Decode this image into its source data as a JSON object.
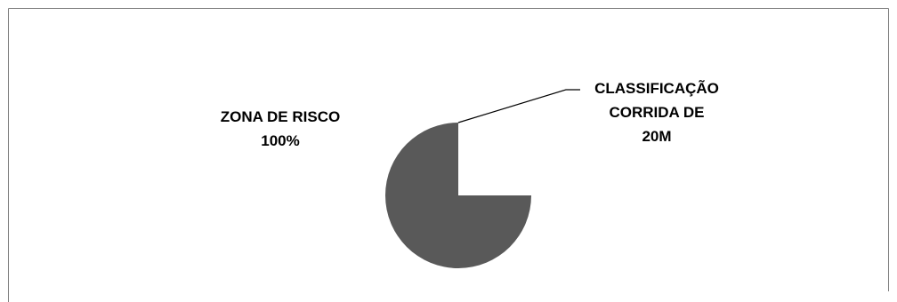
{
  "chart_data": {
    "type": "pie",
    "categories": [
      "ZONA DE RISCO",
      "CLASSIFICAÇÃO CORRIDA DE 20M"
    ],
    "values": [
      100,
      0
    ],
    "slice_colors": [
      "#595959",
      "#595959"
    ],
    "data_labels": {
      "zona": {
        "line1": "ZONA DE RISCO",
        "line2": "100%"
      },
      "classificacao": {
        "line1": "CLASSIFICAÇÃO",
        "line2": "CORRIDA DE",
        "line3": "20M"
      }
    },
    "border_color": "#7f7f7f"
  }
}
